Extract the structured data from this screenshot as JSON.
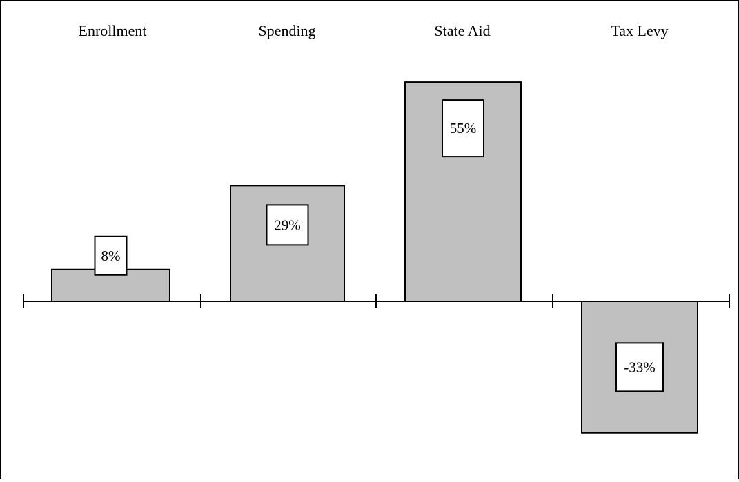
{
  "chart_data": {
    "type": "bar",
    "categories": [
      "Enrollment",
      "Spending",
      "State Aid",
      "Tax Levy"
    ],
    "values": [
      8,
      29,
      55,
      -33
    ],
    "value_labels": [
      "8%",
      "29%",
      "55%",
      "-33%"
    ],
    "unit": "%",
    "ylim": [
      -45,
      62
    ],
    "grid": false,
    "legend": "none",
    "colors": {
      "bar_fill": "#c0c0c0",
      "bar_stroke": "#000000",
      "label_box_fill": "#ffffff",
      "axis": "#000000",
      "border": "#000000",
      "background": "#ffffff"
    }
  }
}
